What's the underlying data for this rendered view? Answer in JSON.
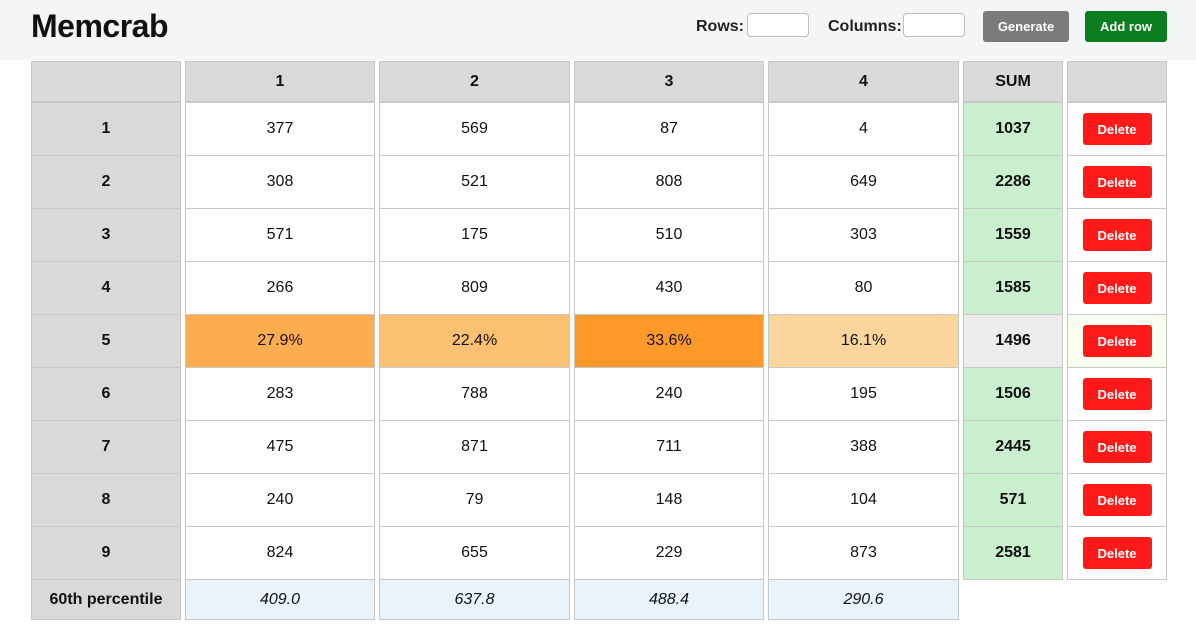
{
  "app": {
    "title": "Memcrab"
  },
  "controls": {
    "rows_label": "Rows:",
    "rows_value": "",
    "columns_label": "Columns:",
    "columns_value": "",
    "generate_label": "Generate",
    "add_row_label": "Add row"
  },
  "table": {
    "corner_label": "",
    "column_headers": [
      "1",
      "2",
      "3",
      "4"
    ],
    "sum_header": "SUM",
    "actions_header": "",
    "delete_label": "Delete",
    "percentile_label": "60th percentile",
    "percentiles": [
      "409.0",
      "637.8",
      "488.4",
      "290.6"
    ],
    "highlighted_row_index": 4,
    "rows": [
      {
        "label": "1",
        "cells": [
          "377",
          "569",
          "87",
          "4"
        ],
        "sum": "1037"
      },
      {
        "label": "2",
        "cells": [
          "308",
          "521",
          "808",
          "649"
        ],
        "sum": "2286"
      },
      {
        "label": "3",
        "cells": [
          "571",
          "175",
          "510",
          "303"
        ],
        "sum": "1559"
      },
      {
        "label": "4",
        "cells": [
          "266",
          "809",
          "430",
          "80"
        ],
        "sum": "1585"
      },
      {
        "label": "5",
        "cells": [
          "27.9%",
          "22.4%",
          "33.6%",
          "16.1%"
        ],
        "percent_values": [
          27.9,
          22.4,
          33.6,
          16.1
        ],
        "sum": "1496"
      },
      {
        "label": "6",
        "cells": [
          "283",
          "788",
          "240",
          "195"
        ],
        "sum": "1506"
      },
      {
        "label": "7",
        "cells": [
          "475",
          "871",
          "711",
          "388"
        ],
        "sum": "2445"
      },
      {
        "label": "8",
        "cells": [
          "240",
          "79",
          "148",
          "104"
        ],
        "sum": "571"
      },
      {
        "label": "9",
        "cells": [
          "824",
          "655",
          "229",
          "873"
        ],
        "sum": "2581"
      }
    ]
  },
  "colors": {
    "header_bg": "#d9d9d9",
    "sum_bg": "#c9efcf",
    "percentile_bg": "#eaf3fc",
    "delete_bg": "#ff1a1a",
    "add_row_bg": "#0a7d1f",
    "generate_bg": "#7b7b7b",
    "heat_low": "#fad59c",
    "heat_high": "#ff9a2a"
  }
}
